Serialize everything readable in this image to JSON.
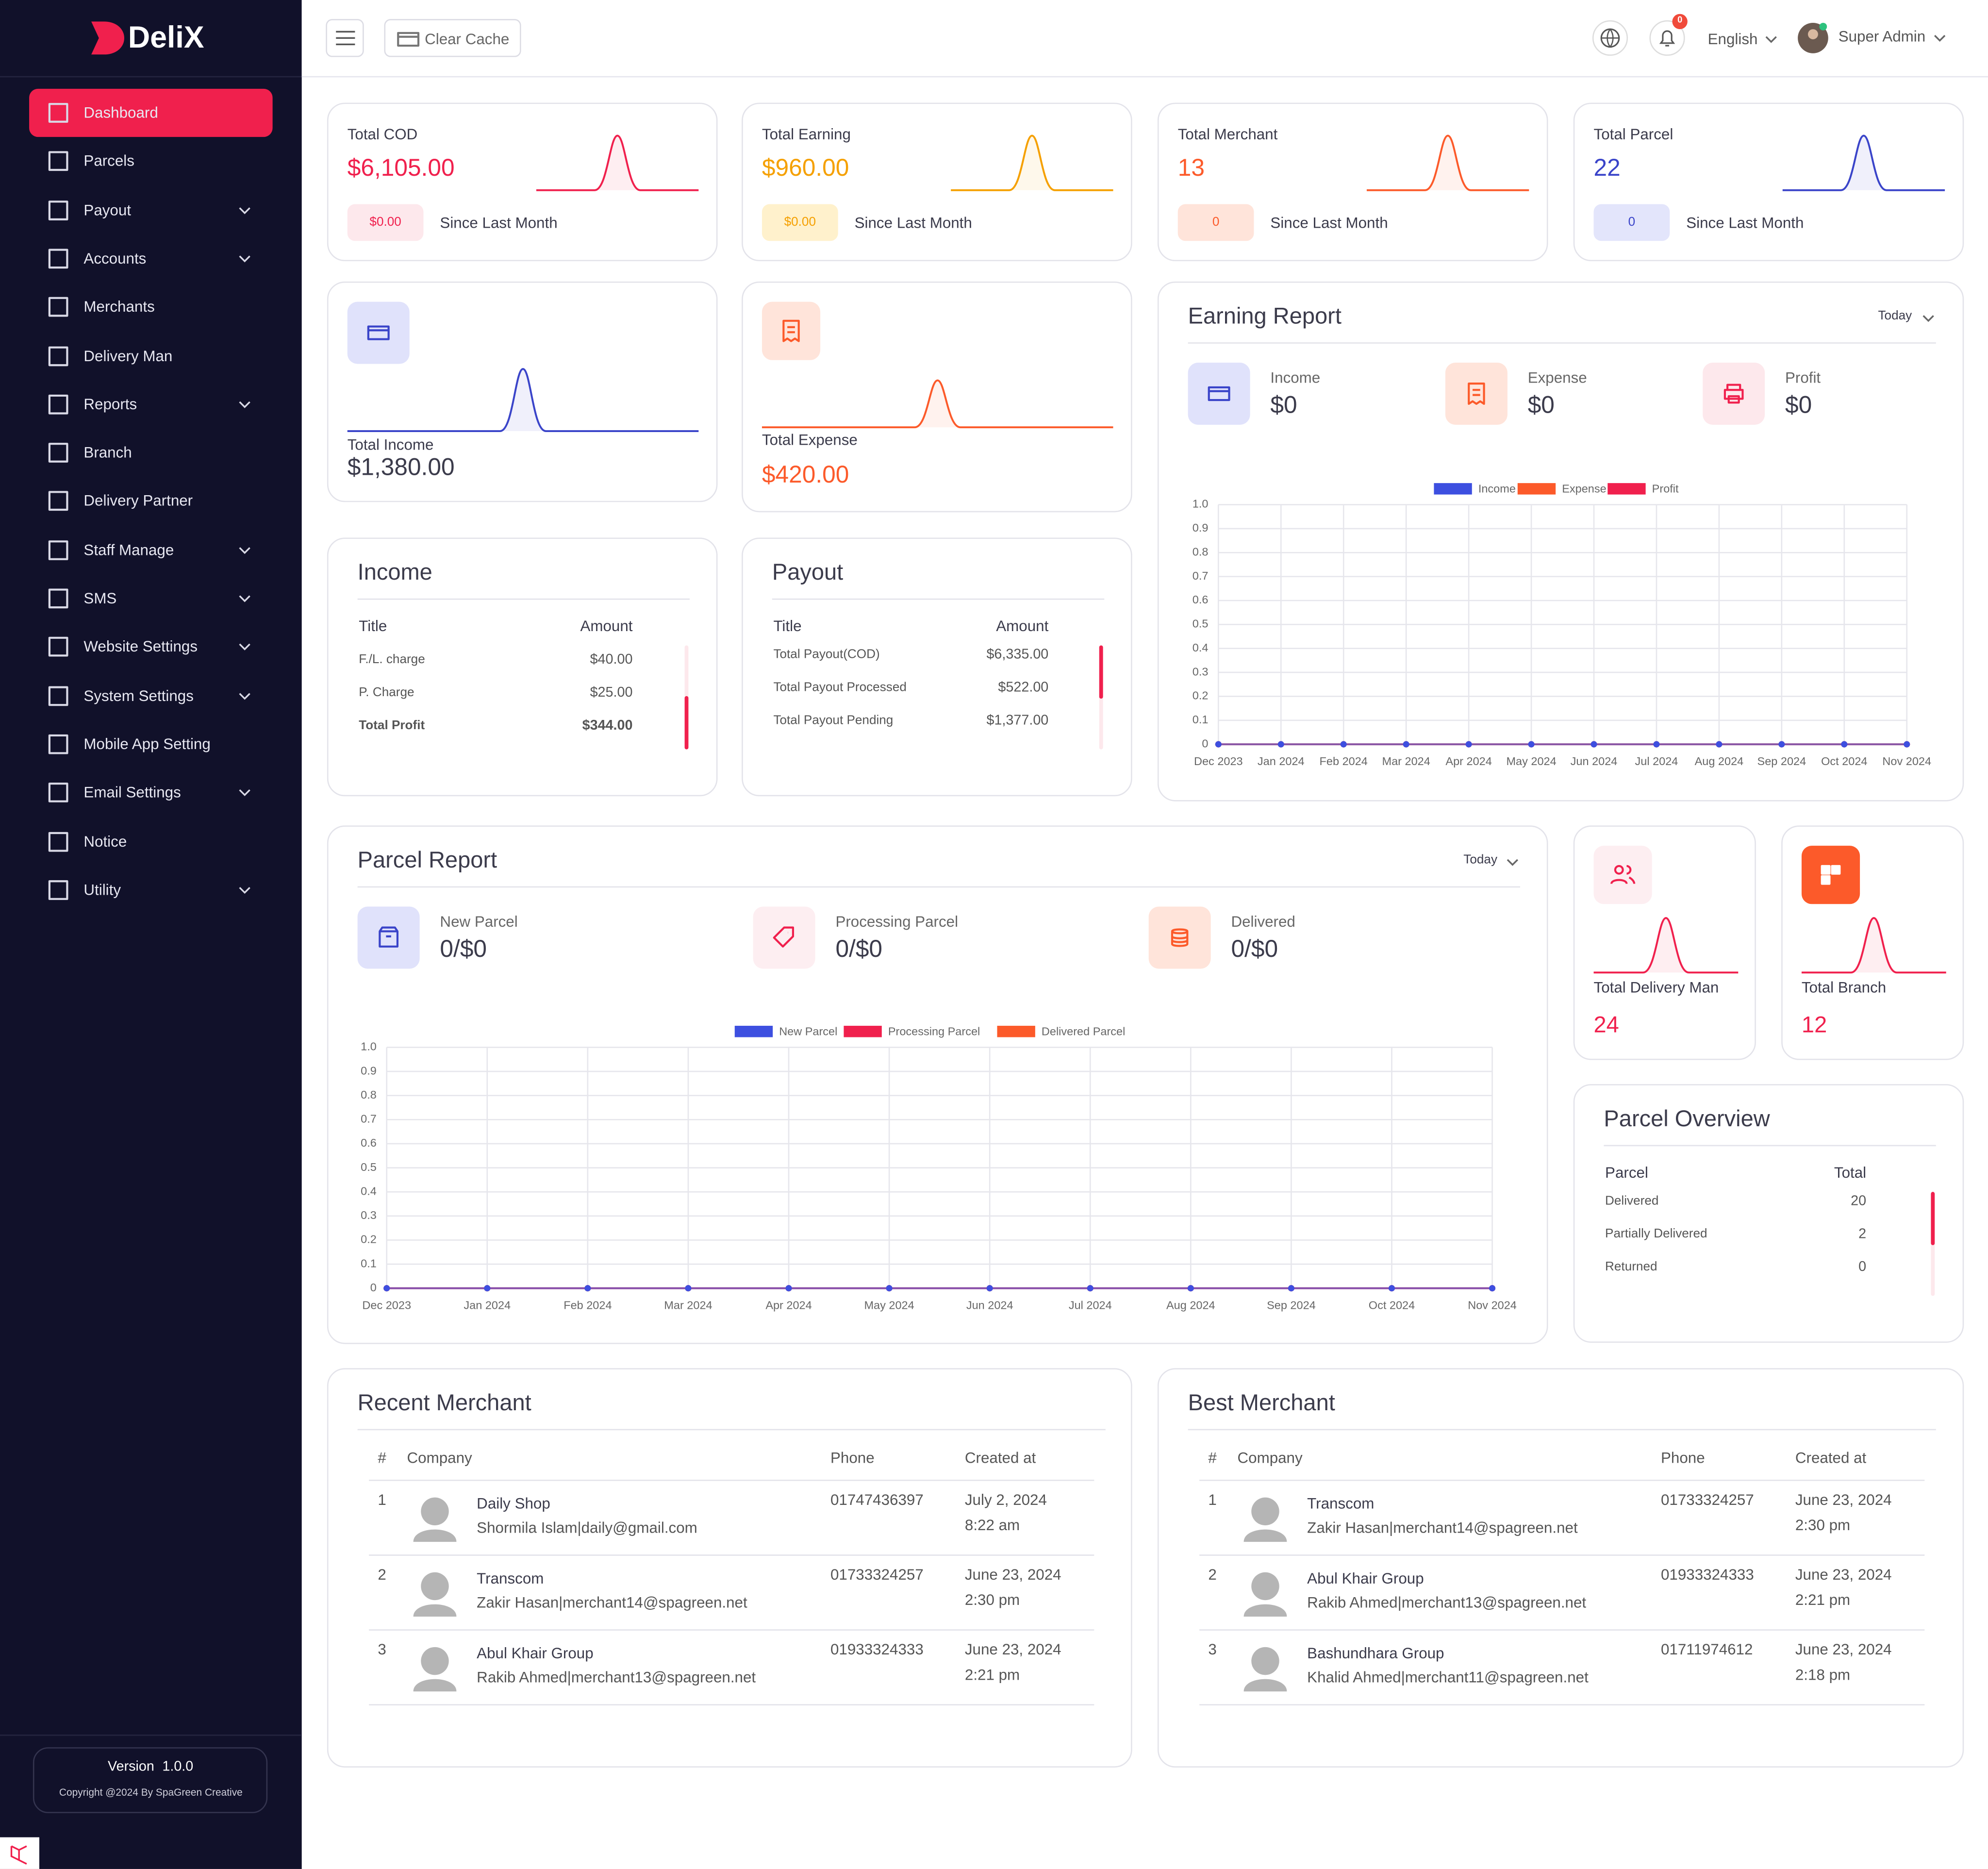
{
  "brand": "DeliX",
  "sidebar": {
    "menu": [
      {
        "label": "Dashboard",
        "submenu": false,
        "active": true
      },
      {
        "label": "Parcels",
        "submenu": false
      },
      {
        "label": "Payout",
        "submenu": true
      },
      {
        "label": "Accounts",
        "submenu": true
      },
      {
        "label": "Merchants",
        "submenu": false
      },
      {
        "label": "Delivery Man",
        "submenu": false
      },
      {
        "label": "Reports",
        "submenu": true
      },
      {
        "label": "Branch",
        "submenu": false
      },
      {
        "label": "Delivery Partner",
        "submenu": false
      },
      {
        "label": "Staff Manage",
        "submenu": true
      },
      {
        "label": "SMS",
        "submenu": true
      },
      {
        "label": "Website Settings",
        "submenu": true
      },
      {
        "label": "System Settings",
        "submenu": true
      },
      {
        "label": "Mobile App Setting",
        "submenu": false
      },
      {
        "label": "Email Settings",
        "submenu": true
      },
      {
        "label": "Notice",
        "submenu": false
      },
      {
        "label": "Utility",
        "submenu": true
      }
    ],
    "version_label": "Version",
    "version": "1.0.0",
    "copyright": "Copyright @2024 By SpaGreen Creative"
  },
  "topbar": {
    "clear_cache": "Clear Cache",
    "notifications": 0,
    "language": "English",
    "user": "Super Admin"
  },
  "stats": [
    {
      "title": "Total COD",
      "value": "$6,105.00",
      "badge": "$0.00",
      "note": "Since Last Month",
      "color": "#f0204d",
      "tint": "#fde8ec"
    },
    {
      "title": "Total Earning",
      "value": "$960.00",
      "badge": "$0.00",
      "note": "Since Last Month",
      "color": "#f5a000",
      "tint": "#fff1cc"
    },
    {
      "title": "Total Merchant",
      "value": 13,
      "badge": 0,
      "note": "Since Last Month",
      "color": "#fc5a2a",
      "tint": "#ffe4da"
    },
    {
      "title": "Total Parcel",
      "value": 22,
      "badge": 0,
      "note": "Since Last Month",
      "color": "#3a44c9",
      "tint": "#e3e5fb"
    }
  ],
  "totals": {
    "income": {
      "label": "Total Income",
      "value": "$1,380.00"
    },
    "expense": {
      "label": "Total Expense",
      "value": "$420.00"
    },
    "delivery_man": {
      "label": "Total Delivery Man",
      "value": 24
    },
    "branch": {
      "label": "Total Branch",
      "value": 12
    }
  },
  "income_table": {
    "title": "Income",
    "headers": [
      "Title",
      "Amount"
    ],
    "rows": [
      [
        "F./L. charge",
        "$40.00"
      ],
      [
        "P. Charge",
        "$25.00"
      ],
      [
        "Total Profit",
        "$344.00"
      ]
    ]
  },
  "payout_table": {
    "title": "Payout",
    "headers": [
      "Title",
      "Amount"
    ],
    "rows": [
      [
        "Total Payout(COD)",
        "$6,335.00"
      ],
      [
        "Total Payout Processed",
        "$522.00"
      ],
      [
        "Total Payout Pending",
        "$1,377.00"
      ]
    ]
  },
  "earning_report": {
    "filter": "Today",
    "items": [
      {
        "label": "Income",
        "value": "$0"
      },
      {
        "label": "Expense",
        "value": "$0"
      },
      {
        "label": "Profit",
        "value": "$0"
      }
    ]
  },
  "parcel_report": {
    "filter": "Today",
    "items": [
      {
        "label": "New Parcel",
        "value": "0/$0"
      },
      {
        "label": "Processing Parcel",
        "value": "0/$0"
      },
      {
        "label": "Delivered",
        "value": "0/$0"
      }
    ]
  },
  "parcel_overview": {
    "title": "Parcel Overview",
    "headers": [
      "Parcel",
      "Total"
    ],
    "rows": [
      [
        "Delivered",
        20
      ],
      [
        "Partially Delivered",
        2
      ],
      [
        "Returned",
        0
      ]
    ]
  },
  "recent_merchant": {
    "title": "Recent Merchant",
    "headers": [
      "#",
      "Company",
      "Phone",
      "Created at"
    ],
    "rows": [
      [
        1,
        "Daily Shop",
        "Shormila Islam|daily@gmail.com",
        "01747436397",
        "July 2, 2024",
        "8:22 am"
      ],
      [
        2,
        "Transcom",
        "Zakir Hasan|merchant14@spagreen.net",
        "01733324257",
        "June 23, 2024",
        "2:30 pm"
      ],
      [
        3,
        "Abul Khair Group",
        "Rakib Ahmed|merchant13@spagreen.net",
        "01933324333",
        "June 23, 2024",
        "2:21 pm"
      ]
    ]
  },
  "best_merchant": {
    "title": "Best Merchant",
    "headers": [
      "#",
      "Company",
      "Phone",
      "Created at"
    ],
    "rows": [
      [
        1,
        "Transcom",
        "Zakir Hasan|merchant14@spagreen.net",
        "01733324257",
        "June 23, 2024",
        "2:30 pm"
      ],
      [
        2,
        "Abul Khair Group",
        "Rakib Ahmed|merchant13@spagreen.net",
        "01933324333",
        "June 23, 2024",
        "2:21 pm"
      ],
      [
        3,
        "Bashundhara Group",
        "Khalid Ahmed|merchant11@spagreen.net",
        "01711974612",
        "June 23, 2024",
        "2:18 pm"
      ]
    ]
  },
  "chart_data": [
    {
      "type": "line",
      "title": "Earning Report",
      "categories": [
        "Dec 2023",
        "Jan 2024",
        "Feb 2024",
        "Mar 2024",
        "Apr 2024",
        "May 2024",
        "Jun 2024",
        "Jul 2024",
        "Aug 2024",
        "Sep 2024",
        "Oct 2024",
        "Nov 2024"
      ],
      "series": [
        {
          "name": "Income",
          "color": "#3d4fe0",
          "values": [
            0,
            0,
            0,
            0,
            0,
            0,
            0,
            0,
            0,
            0,
            0,
            0
          ]
        },
        {
          "name": "Expense",
          "color": "#fc5a2a",
          "values": [
            0,
            0,
            0,
            0,
            0,
            0,
            0,
            0,
            0,
            0,
            0,
            0
          ]
        },
        {
          "name": "Profit",
          "color": "#f0204d",
          "values": [
            0,
            0,
            0,
            0,
            0,
            0,
            0,
            0,
            0,
            0,
            0,
            0
          ]
        }
      ],
      "ylim": [
        0,
        1
      ],
      "yticks": [
        0,
        0.1,
        0.2,
        0.3,
        0.4,
        0.5,
        0.6,
        0.7,
        0.8,
        0.9,
        {
          "value": 1,
          "label": "1.0"
        }
      ],
      "grid": true,
      "legend": "top"
    },
    {
      "type": "line",
      "title": "Parcel Report",
      "categories": [
        "Dec 2023",
        "Jan 2024",
        "Feb 2024",
        "Mar 2024",
        "Apr 2024",
        "May 2024",
        "Jun 2024",
        "Jul 2024",
        "Aug 2024",
        "Sep 2024",
        "Oct 2024",
        "Nov 2024"
      ],
      "series": [
        {
          "name": "New Parcel",
          "color": "#3d4fe0",
          "values": [
            0,
            0,
            0,
            0,
            0,
            0,
            0,
            0,
            0,
            0,
            0,
            0
          ]
        },
        {
          "name": "Processing Parcel",
          "color": "#f0204d",
          "values": [
            0,
            0,
            0,
            0,
            0,
            0,
            0,
            0,
            0,
            0,
            0,
            0
          ]
        },
        {
          "name": "Delivered Parcel",
          "color": "#fc5a2a",
          "values": [
            0,
            0,
            0,
            0,
            0,
            0,
            0,
            0,
            0,
            0,
            0,
            0
          ]
        }
      ],
      "ylim": [
        0,
        1
      ],
      "yticks": [
        0,
        0.1,
        0.2,
        0.3,
        0.4,
        0.5,
        0.6,
        0.7,
        0.8,
        0.9,
        {
          "value": 1,
          "label": "1.0"
        }
      ],
      "grid": true,
      "legend": "top"
    }
  ]
}
